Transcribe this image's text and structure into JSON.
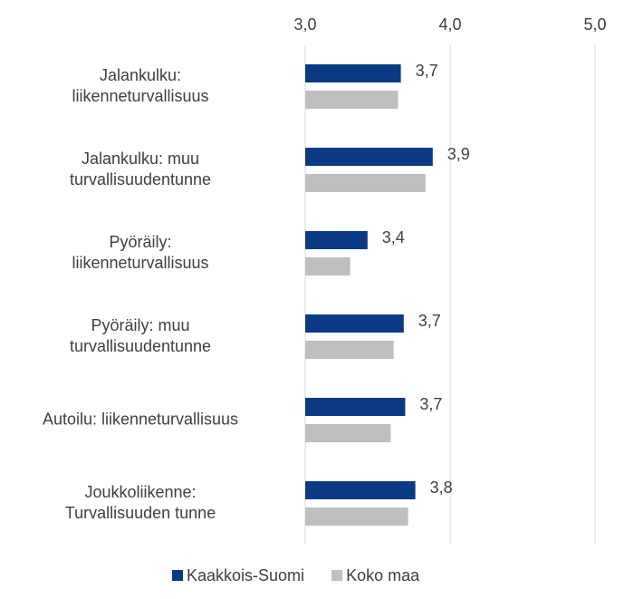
{
  "chart_data": {
    "type": "bar",
    "orientation": "horizontal",
    "categories": [
      "Jalankulku:\nliikenneturvallisuus",
      "Jalankulku: muu\nturvallisuudentunne",
      "Pyöräily:\nliikenneturvallisuus",
      "Pyöräily: muu\nturvallisuudentunne",
      "Autoilu: liikenneturvallisuus",
      "Joukkoliikenne:\nTurvallisuuden tunne"
    ],
    "series": [
      {
        "name": "Kaakkois-Suomi",
        "color": "#0b3a84",
        "values": [
          3.66,
          3.88,
          3.43,
          3.68,
          3.69,
          3.76
        ],
        "value_labels": [
          "3,7",
          "3,9",
          "3,4",
          "3,7",
          "3,7",
          "3,8"
        ]
      },
      {
        "name": "Koko maa",
        "color": "#bfbfbf",
        "values": [
          3.64,
          3.83,
          3.31,
          3.61,
          3.59,
          3.71
        ]
      }
    ],
    "xlim": [
      3.0,
      5.0
    ],
    "xticks": [
      {
        "value": 3.0,
        "label": "3,0"
      },
      {
        "value": 4.0,
        "label": "4,0"
      },
      {
        "value": 5.0,
        "label": "5,0"
      }
    ],
    "grid": true,
    "legend": "bottom"
  }
}
